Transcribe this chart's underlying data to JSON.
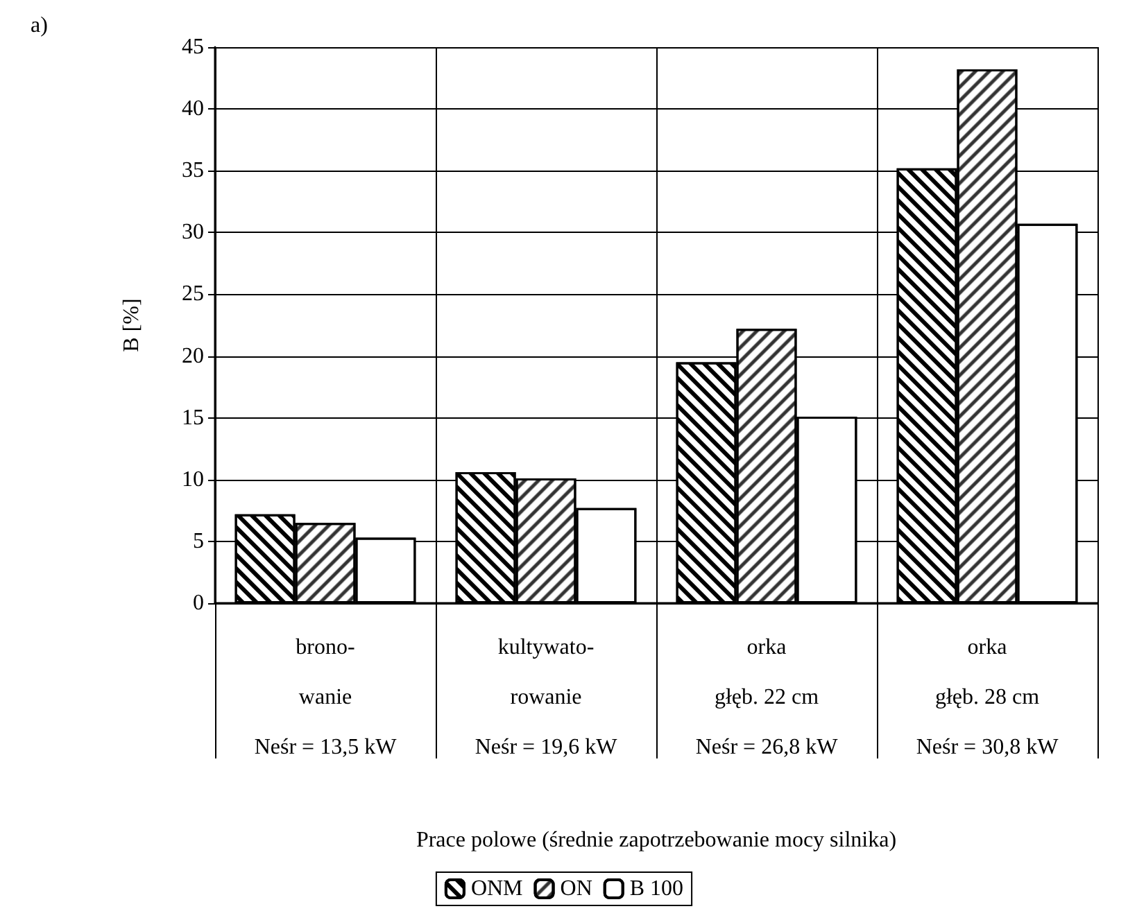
{
  "chart_data": {
    "type": "bar",
    "ylabel": "B [%]",
    "xlabel": "Prace polowe (średnie zapotrzebowanie mocy silnika)",
    "annotations": [
      "a)"
    ],
    "categories": [
      "brono-\nwanie\nNeśr = 13,5 kW",
      "kultywato-\nrowanie\nNeśr = 19,6 kW",
      "orka\ngłęb. 22 cm\nNeśr = 26,8 kW",
      "orka\ngłęb. 28 cm\nNeśr = 30,8 kW"
    ],
    "series": [
      {
        "name": "ONM",
        "color": "#ffffff",
        "values": [
          7.2,
          10.6,
          19.5,
          35.2
        ]
      },
      {
        "name": "ON",
        "color": "#ffffff",
        "values": [
          6.5,
          10.1,
          22.2,
          43.2
        ]
      },
      {
        "name": "B 100",
        "color": "#ffffff",
        "values": [
          5.3,
          7.7,
          15.1,
          30.7
        ]
      }
    ],
    "ylim": [
      0,
      45
    ],
    "yticks": [
      0,
      5,
      10,
      15,
      20,
      25,
      30,
      35,
      40,
      45
    ],
    "grid": true,
    "legend": "bottom"
  }
}
